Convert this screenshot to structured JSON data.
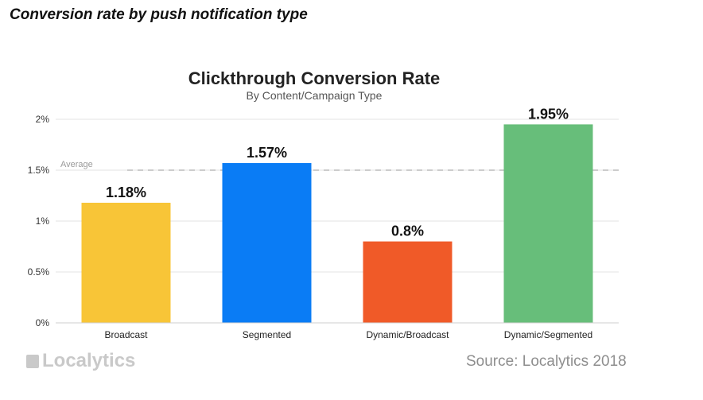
{
  "page_heading": "Conversion rate by push notification type",
  "footer": {
    "brand": "Localytics",
    "source": "Source: Localytics 2018"
  },
  "chart_data": {
    "type": "bar",
    "title": "Clickthrough Conversion Rate",
    "subtitle": "By Content/Campaign Type",
    "xlabel": "",
    "ylabel": "",
    "ylim": [
      0,
      2
    ],
    "yticks": [
      {
        "value": 0,
        "label": "0%"
      },
      {
        "value": 0.5,
        "label": "0.5%"
      },
      {
        "value": 1,
        "label": "1%"
      },
      {
        "value": 1.5,
        "label": "1.5%"
      },
      {
        "value": 2,
        "label": "2%"
      }
    ],
    "grid": true,
    "categories": [
      "Broadcast",
      "Segmented",
      "Dynamic/Broadcast",
      "Dynamic/Segmented"
    ],
    "values": [
      1.18,
      1.57,
      0.8,
      1.95
    ],
    "data_labels": [
      "1.18%",
      "1.57%",
      "0.8%",
      "1.95%"
    ],
    "colors": [
      "#F8C537",
      "#0A7CF5",
      "#F05A28",
      "#67BE7A"
    ],
    "reference_line": {
      "label": "Average",
      "value": 1.5,
      "style": "dashed"
    }
  }
}
